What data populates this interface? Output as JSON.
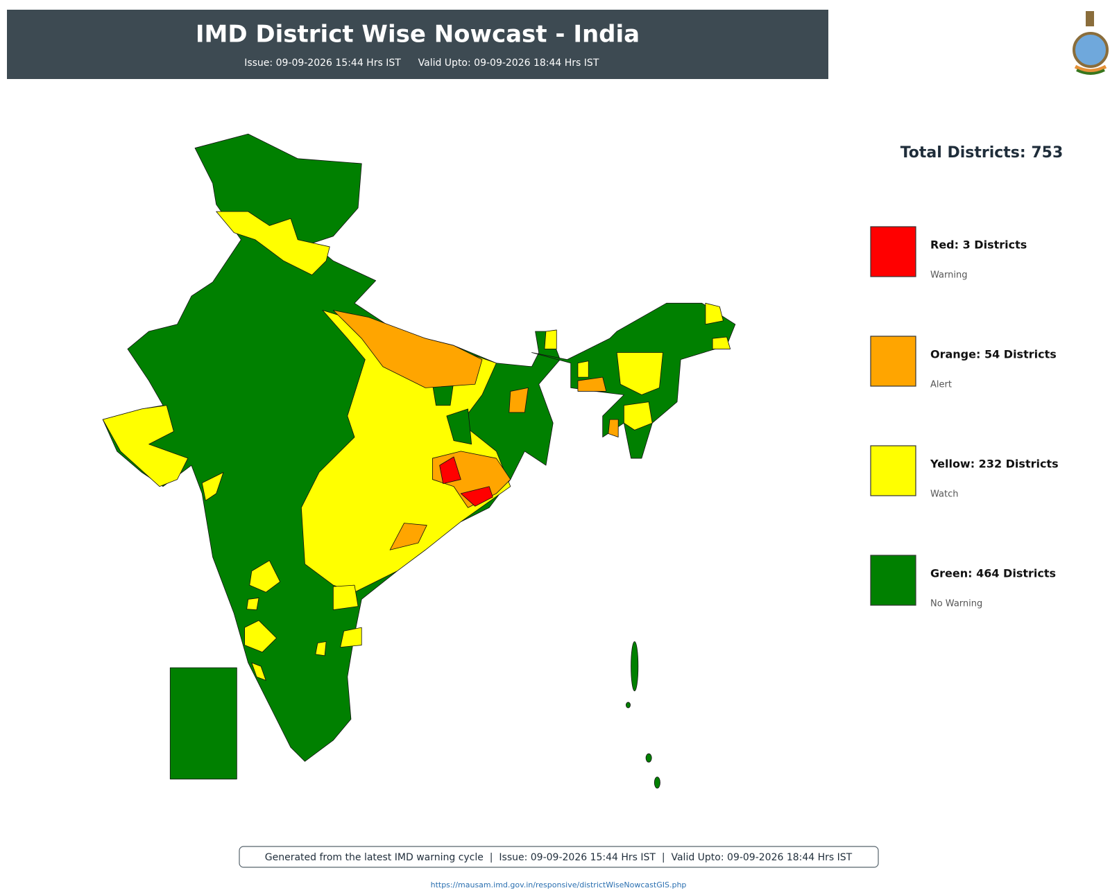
{
  "header": {
    "title": "IMD District Wise Nowcast - India",
    "issue": "Issue: 09-09-2026 15:44 Hrs IST",
    "valid": "Valid Upto: 09-09-2026 18:44 Hrs IST"
  },
  "total": "Total Districts: 753",
  "legend": [
    {
      "label": "Red: 3 Districts",
      "description": "Warning",
      "color": "#ff0000"
    },
    {
      "label": "Orange: 54 Districts",
      "description": "Alert",
      "color": "#ffa500"
    },
    {
      "label": "Yellow: 232 Districts",
      "description": "Watch",
      "color": "#ffff00"
    },
    {
      "label": "Green: 464 Districts",
      "description": "No Warning",
      "color": "#008000"
    }
  ],
  "footer": {
    "note": "Generated from the latest IMD warning cycle  |  Issue: 09-09-2026 15:44 Hrs IST  |  Valid Upto: 09-09-2026 18:44 Hrs IST",
    "url": "https://mausam.imd.gov.in/responsive/districtWiseNowcastGIS.php"
  }
}
